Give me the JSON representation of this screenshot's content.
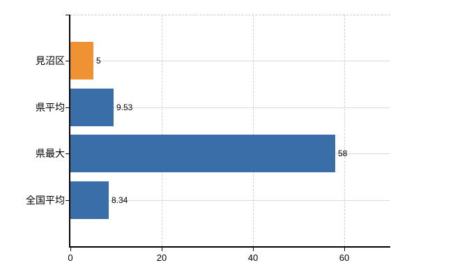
{
  "chart_data": {
    "type": "bar",
    "orientation": "horizontal",
    "title": "",
    "xlabel": "",
    "ylabel": "",
    "categories": [
      "見沼区",
      "県平均",
      "県最大",
      "全国平均"
    ],
    "values": [
      5,
      9.53,
      58,
      8.34
    ],
    "value_labels": [
      "5",
      "9.53",
      "58",
      "8.34"
    ],
    "bar_colors": [
      "#ef9234",
      "#3a6ea8",
      "#3a6ea8",
      "#3a6ea8"
    ],
    "x_ticks": [
      0,
      20,
      40,
      60
    ],
    "x_tick_labels": [
      "0",
      "20",
      "40",
      "60"
    ],
    "xlim": [
      0,
      70
    ],
    "grid": true,
    "legend": "none"
  },
  "colors": {
    "bar_blue": "#3a6ea8",
    "bar_orange": "#ef9234",
    "h_gridline": "#d7dcd7",
    "v_gridline": "#d2cdd2",
    "top_border": "#c9c9c9",
    "axis": "#000000",
    "text": "#000000",
    "background": "#ffffff"
  }
}
